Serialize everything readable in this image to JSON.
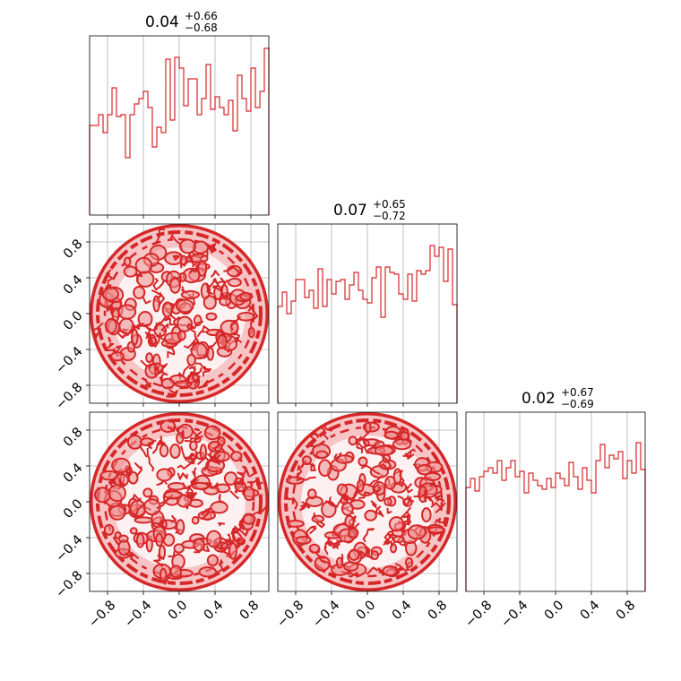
{
  "chart_data": [
    {
      "type": "histogram",
      "panel": "hist-0",
      "title": {
        "median": "0.04",
        "upper": "+0.66",
        "lower": "−0.68"
      },
      "xlim": [
        -1,
        1
      ],
      "bin_edges_start": -1,
      "bin_width": 0.05,
      "values": [
        0.5,
        0.5,
        0.56,
        0.46,
        0.56,
        0.71,
        0.55,
        0.56,
        0.32,
        0.56,
        0.62,
        0.65,
        0.69,
        0.6,
        0.38,
        0.49,
        0.46,
        0.87,
        0.53,
        0.88,
        0.82,
        0.61,
        0.76,
        0.76,
        0.56,
        0.65,
        0.84,
        0.59,
        0.66,
        0.6,
        0.56,
        0.64,
        0.47,
        0.78,
        0.65,
        0.58,
        0.82,
        0.6,
        0.69,
        0.93
      ],
      "ylim": [
        0,
        1
      ],
      "color": "#d62728"
    },
    {
      "type": "histogram",
      "panel": "hist-1",
      "title": {
        "median": "0.07",
        "upper": "+0.65",
        "lower": "−0.72"
      },
      "xlim": [
        -1,
        1
      ],
      "bin_edges_start": -1,
      "bin_width": 0.05,
      "values": [
        0.54,
        0.62,
        0.5,
        0.57,
        0.69,
        0.69,
        0.59,
        0.63,
        0.53,
        0.75,
        0.54,
        0.69,
        0.61,
        0.68,
        0.69,
        0.58,
        0.66,
        0.73,
        0.63,
        0.58,
        0.56,
        0.7,
        0.76,
        0.48,
        0.76,
        0.73,
        0.72,
        0.61,
        0.58,
        0.72,
        0.57,
        0.74,
        0.72,
        0.74,
        0.88,
        0.82,
        0.87,
        0.68,
        0.86,
        0.55
      ],
      "ylim": [
        0,
        1
      ],
      "color": "#d62728"
    },
    {
      "type": "histogram",
      "panel": "hist-2",
      "title": {
        "median": "0.02",
        "upper": "+0.67",
        "lower": "−0.69"
      },
      "xlim": [
        -1,
        1
      ],
      "bin_edges_start": -1,
      "bin_width": 0.05,
      "values": [
        0.58,
        0.63,
        0.56,
        0.64,
        0.67,
        0.69,
        0.66,
        0.73,
        0.62,
        0.69,
        0.73,
        0.64,
        0.67,
        0.55,
        0.66,
        0.62,
        0.59,
        0.57,
        0.63,
        0.58,
        0.66,
        0.63,
        0.59,
        0.72,
        0.64,
        0.57,
        0.69,
        0.62,
        0.55,
        0.73,
        0.82,
        0.69,
        0.76,
        0.74,
        0.78,
        0.63,
        0.73,
        0.66,
        0.83,
        0.68
      ],
      "ylim": [
        0,
        1
      ],
      "color": "#d62728"
    },
    {
      "type": "contour",
      "panel": "contour-1-0",
      "description_of_support": "uniform disk of radius 1",
      "xlim": [
        -1,
        1
      ],
      "ylim": [
        -1,
        1
      ],
      "xticks": [
        "−0.8",
        "−0.4",
        "0.0",
        "0.4",
        "0.8"
      ],
      "yticks": [
        "−0.8",
        "−0.4",
        "0.0",
        "0.4",
        "0.8"
      ],
      "color": "#d62728"
    },
    {
      "type": "contour",
      "panel": "contour-2-0",
      "xlim": [
        -1,
        1
      ],
      "ylim": [
        -1,
        1
      ],
      "xticks": [
        "−0.8",
        "−0.4",
        "0.0",
        "0.4",
        "0.8"
      ],
      "yticks": [
        "−0.8",
        "−0.4",
        "0.0",
        "0.4",
        "0.8"
      ],
      "color": "#d62728"
    },
    {
      "type": "contour",
      "panel": "contour-2-1",
      "xlim": [
        -1,
        1
      ],
      "ylim": [
        -1,
        1
      ],
      "xticks": [
        "−0.8",
        "−0.4",
        "0.0",
        "0.4",
        "0.8"
      ],
      "color": "#d62728"
    }
  ],
  "ticks": {
    "values": [
      -0.8,
      -0.4,
      0.0,
      0.4,
      0.8
    ],
    "labels": [
      "−0.8",
      "−0.4",
      "0.0",
      "0.4",
      "0.8"
    ]
  },
  "colors": {
    "line": "#d62728",
    "fill_light": "#f7c5c6",
    "fill_mid": "#ee8c8d",
    "grid": "#b0b0b0",
    "axes": "#000000"
  }
}
